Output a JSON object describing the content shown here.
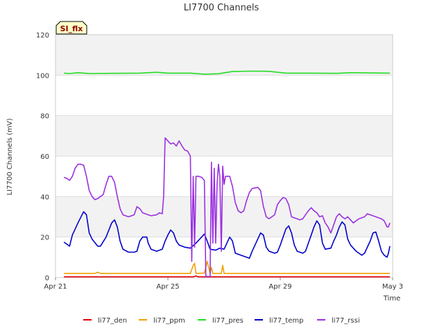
{
  "chart_data": {
    "type": "line",
    "title": "LI7700 Channels",
    "xlabel": "Time",
    "ylabel": "LI7700 Channels (mV)",
    "badge": "SI_flx",
    "xlim": [
      0,
      12
    ],
    "ylim": [
      0,
      120
    ],
    "yticks": [
      0,
      20,
      40,
      60,
      80,
      100,
      120
    ],
    "xticks": [
      {
        "t": 0,
        "label": "Apr 21"
      },
      {
        "t": 4,
        "label": "Apr 25"
      },
      {
        "t": 8,
        "label": "Apr 29"
      },
      {
        "t": 12,
        "label": "May 3"
      }
    ],
    "bands": [
      [
        20,
        40
      ],
      [
        60,
        80
      ],
      [
        100,
        120
      ]
    ],
    "series": [
      {
        "name": "li77_den",
        "color": "#dd0000",
        "points": [
          [
            0.3,
            0.3
          ],
          [
            4.9,
            0.3
          ],
          [
            5.0,
            0.8
          ],
          [
            5.1,
            0.3
          ],
          [
            11.9,
            0.3
          ]
        ]
      },
      {
        "name": "li77_ppm",
        "color": "#f0a000",
        "points": [
          [
            0.3,
            2.0
          ],
          [
            1.4,
            2.0
          ],
          [
            1.5,
            2.6
          ],
          [
            1.6,
            2.0
          ],
          [
            4.8,
            2.0
          ],
          [
            4.9,
            6.0
          ],
          [
            4.95,
            7.0
          ],
          [
            5.0,
            2.0
          ],
          [
            5.3,
            2.2
          ],
          [
            5.4,
            8.0
          ],
          [
            5.5,
            2.0
          ],
          [
            5.55,
            5.0
          ],
          [
            5.6,
            2.0
          ],
          [
            5.9,
            2.0
          ],
          [
            5.95,
            6.0
          ],
          [
            6.0,
            2.0
          ],
          [
            11.9,
            2.0
          ]
        ]
      },
      {
        "name": "li77_pres",
        "color": "#22dd22",
        "points": [
          [
            0.3,
            101.0
          ],
          [
            0.5,
            100.8
          ],
          [
            0.8,
            101.2
          ],
          [
            1.2,
            100.8
          ],
          [
            2.0,
            100.9
          ],
          [
            3.0,
            101.0
          ],
          [
            3.6,
            101.4
          ],
          [
            4.0,
            101.0
          ],
          [
            4.8,
            101.0
          ],
          [
            5.3,
            100.5
          ],
          [
            5.8,
            100.7
          ],
          [
            6.3,
            101.8
          ],
          [
            7.0,
            102.0
          ],
          [
            7.6,
            101.9
          ],
          [
            8.2,
            101.0
          ],
          [
            9.0,
            101.0
          ],
          [
            10.0,
            100.9
          ],
          [
            10.5,
            101.2
          ],
          [
            11.9,
            101.0
          ]
        ]
      },
      {
        "name": "li77_temp",
        "color": "#0000cc",
        "points": [
          [
            0.3,
            17.5
          ],
          [
            0.4,
            16.5
          ],
          [
            0.5,
            15.5
          ],
          [
            0.6,
            21.0
          ],
          [
            0.8,
            27.0
          ],
          [
            1.0,
            32.5
          ],
          [
            1.1,
            31.0
          ],
          [
            1.2,
            22.0
          ],
          [
            1.3,
            19.0
          ],
          [
            1.5,
            15.5
          ],
          [
            1.6,
            15.5
          ],
          [
            1.8,
            20.0
          ],
          [
            2.0,
            27.0
          ],
          [
            2.1,
            28.5
          ],
          [
            2.2,
            25.0
          ],
          [
            2.3,
            18.0
          ],
          [
            2.4,
            14.0
          ],
          [
            2.6,
            12.5
          ],
          [
            2.8,
            12.5
          ],
          [
            2.9,
            13.0
          ],
          [
            3.0,
            18.0
          ],
          [
            3.1,
            20.0
          ],
          [
            3.25,
            20.0
          ],
          [
            3.3,
            17.0
          ],
          [
            3.4,
            14.0
          ],
          [
            3.6,
            13.0
          ],
          [
            3.8,
            14.0
          ],
          [
            3.9,
            18.0
          ],
          [
            4.0,
            21.0
          ],
          [
            4.1,
            23.5
          ],
          [
            4.2,
            22.0
          ],
          [
            4.3,
            18.0
          ],
          [
            4.4,
            16.0
          ],
          [
            4.6,
            15.0
          ],
          [
            4.8,
            14.5
          ],
          [
            5.0,
            17.0
          ],
          [
            5.2,
            20.0
          ],
          [
            5.3,
            21.5
          ],
          [
            5.4,
            18.0
          ],
          [
            5.5,
            14.0
          ],
          [
            5.7,
            13.5
          ],
          [
            5.85,
            14.5
          ],
          [
            6.0,
            14.0
          ],
          [
            6.2,
            20.0
          ],
          [
            6.3,
            18.0
          ],
          [
            6.4,
            12.0
          ],
          [
            6.6,
            11.0
          ],
          [
            6.8,
            10.0
          ],
          [
            6.9,
            9.5
          ],
          [
            7.0,
            13.0
          ],
          [
            7.2,
            19.0
          ],
          [
            7.3,
            22.0
          ],
          [
            7.4,
            21.0
          ],
          [
            7.5,
            15.0
          ],
          [
            7.6,
            13.0
          ],
          [
            7.8,
            12.0
          ],
          [
            7.9,
            12.5
          ],
          [
            8.0,
            16.0
          ],
          [
            8.1,
            20.0
          ],
          [
            8.2,
            24.0
          ],
          [
            8.3,
            25.5
          ],
          [
            8.4,
            22.0
          ],
          [
            8.5,
            16.0
          ],
          [
            8.6,
            13.0
          ],
          [
            8.8,
            12.0
          ],
          [
            8.9,
            13.0
          ],
          [
            9.0,
            17.0
          ],
          [
            9.1,
            21.0
          ],
          [
            9.2,
            25.0
          ],
          [
            9.3,
            28.0
          ],
          [
            9.4,
            26.0
          ],
          [
            9.5,
            17.0
          ],
          [
            9.6,
            14.0
          ],
          [
            9.8,
            14.5
          ],
          [
            9.9,
            18.0
          ],
          [
            10.0,
            21.0
          ],
          [
            10.1,
            25.0
          ],
          [
            10.2,
            27.5
          ],
          [
            10.3,
            26.0
          ],
          [
            10.4,
            19.0
          ],
          [
            10.5,
            16.0
          ],
          [
            10.7,
            13.0
          ],
          [
            10.9,
            11.0
          ],
          [
            11.0,
            12.0
          ],
          [
            11.2,
            18.0
          ],
          [
            11.3,
            22.0
          ],
          [
            11.4,
            22.5
          ],
          [
            11.5,
            18.0
          ],
          [
            11.6,
            13.0
          ],
          [
            11.7,
            11.0
          ],
          [
            11.8,
            10.0
          ],
          [
            11.85,
            12.0
          ],
          [
            11.9,
            15.5
          ]
        ]
      },
      {
        "name": "li77_rssi",
        "color": "#9b30e0",
        "points": [
          [
            0.3,
            49.5
          ],
          [
            0.4,
            49.0
          ],
          [
            0.5,
            48.0
          ],
          [
            0.6,
            50.0
          ],
          [
            0.7,
            54.0
          ],
          [
            0.8,
            56.0
          ],
          [
            0.9,
            56.0
          ],
          [
            1.0,
            55.5
          ],
          [
            1.1,
            50.0
          ],
          [
            1.2,
            43.0
          ],
          [
            1.3,
            40.0
          ],
          [
            1.4,
            38.5
          ],
          [
            1.5,
            39.0
          ],
          [
            1.6,
            40.0
          ],
          [
            1.7,
            41.0
          ],
          [
            1.8,
            46.0
          ],
          [
            1.9,
            50.0
          ],
          [
            2.0,
            50.0
          ],
          [
            2.1,
            47.0
          ],
          [
            2.2,
            40.0
          ],
          [
            2.3,
            34.0
          ],
          [
            2.4,
            31.0
          ],
          [
            2.6,
            30.0
          ],
          [
            2.8,
            31.0
          ],
          [
            2.9,
            35.0
          ],
          [
            3.0,
            34.0
          ],
          [
            3.1,
            32.0
          ],
          [
            3.3,
            31.0
          ],
          [
            3.4,
            30.5
          ],
          [
            3.6,
            31.0
          ],
          [
            3.7,
            32.0
          ],
          [
            3.8,
            31.5
          ],
          [
            3.85,
            40.0
          ],
          [
            3.9,
            69.0
          ],
          [
            4.0,
            67.5
          ],
          [
            4.1,
            66.0
          ],
          [
            4.2,
            66.5
          ],
          [
            4.3,
            65.0
          ],
          [
            4.4,
            67.5
          ],
          [
            4.5,
            65.0
          ],
          [
            4.6,
            63.0
          ],
          [
            4.7,
            62.5
          ],
          [
            4.8,
            60.0
          ],
          [
            4.85,
            8.0
          ],
          [
            4.9,
            50.0
          ],
          [
            4.95,
            15.0
          ],
          [
            5.0,
            50.0
          ],
          [
            5.1,
            50.0
          ],
          [
            5.2,
            49.5
          ],
          [
            5.3,
            48.0
          ],
          [
            5.35,
            0.5
          ],
          [
            5.4,
            0.5
          ],
          [
            5.45,
            0.5
          ],
          [
            5.5,
            0.5
          ],
          [
            5.55,
            57.0
          ],
          [
            5.6,
            17.0
          ],
          [
            5.65,
            54.0
          ],
          [
            5.7,
            17.0
          ],
          [
            5.75,
            46.0
          ],
          [
            5.8,
            56.0
          ],
          [
            5.85,
            50.0
          ],
          [
            5.9,
            13.0
          ],
          [
            5.95,
            55.0
          ],
          [
            6.0,
            46.0
          ],
          [
            6.05,
            50.0
          ],
          [
            6.2,
            50.0
          ],
          [
            6.3,
            45.0
          ],
          [
            6.4,
            37.0
          ],
          [
            6.5,
            33.0
          ],
          [
            6.6,
            32.0
          ],
          [
            6.7,
            33.0
          ],
          [
            6.8,
            38.0
          ],
          [
            6.9,
            42.0
          ],
          [
            7.0,
            44.0
          ],
          [
            7.2,
            44.5
          ],
          [
            7.3,
            43.0
          ],
          [
            7.4,
            35.0
          ],
          [
            7.5,
            30.0
          ],
          [
            7.6,
            29.0
          ],
          [
            7.8,
            31.0
          ],
          [
            7.9,
            36.0
          ],
          [
            8.0,
            38.0
          ],
          [
            8.1,
            39.5
          ],
          [
            8.2,
            39.0
          ],
          [
            8.3,
            36.0
          ],
          [
            8.4,
            30.0
          ],
          [
            8.5,
            29.5
          ],
          [
            8.7,
            28.5
          ],
          [
            8.8,
            29.0
          ],
          [
            8.9,
            31.0
          ],
          [
            9.0,
            33.0
          ],
          [
            9.1,
            34.5
          ],
          [
            9.2,
            33.0
          ],
          [
            9.3,
            32.0
          ],
          [
            9.4,
            30.0
          ],
          [
            9.5,
            30.5
          ],
          [
            9.6,
            27.0
          ],
          [
            9.7,
            25.0
          ],
          [
            9.8,
            22.0
          ],
          [
            9.9,
            26.0
          ],
          [
            10.0,
            30.0
          ],
          [
            10.1,
            31.5
          ],
          [
            10.2,
            30.0
          ],
          [
            10.3,
            29.0
          ],
          [
            10.4,
            30.0
          ],
          [
            10.5,
            28.5
          ],
          [
            10.6,
            27.0
          ],
          [
            10.7,
            28.0
          ],
          [
            10.8,
            29.0
          ],
          [
            11.0,
            30.0
          ],
          [
            11.1,
            31.5
          ],
          [
            11.2,
            31.0
          ],
          [
            11.4,
            30.0
          ],
          [
            11.6,
            29.0
          ],
          [
            11.7,
            28.0
          ],
          [
            11.8,
            25.0
          ],
          [
            11.85,
            25.0
          ],
          [
            11.9,
            27.0
          ]
        ]
      }
    ]
  }
}
